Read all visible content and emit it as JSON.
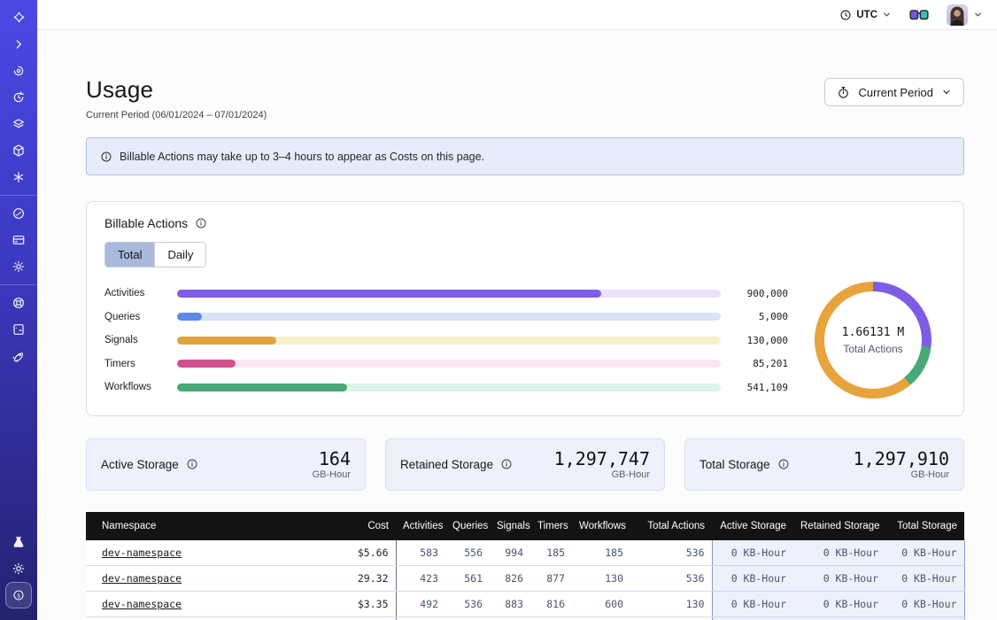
{
  "topbar": {
    "timezone": "UTC",
    "icons": [
      "clock-icon",
      "chevron-down-icon",
      "glasses-feedback-icon",
      "user-avatar",
      "chevron-down-icon"
    ]
  },
  "sidebar": {
    "icons_top": [
      "pinwheel-logo",
      "chevron-right",
      "spiral-namespaces",
      "clock-arrow-schedules",
      "layers",
      "cube-deployments",
      "asterisk-nexus"
    ],
    "icons_middle": [
      "gauge-usage",
      "credit-card-billing",
      "gear-settings"
    ],
    "icons_lower": [
      "life-buoy-support",
      "terminal-docs",
      "rocket-getting-started"
    ],
    "icons_bottom": [
      "flask-labs",
      "sun-theme",
      "dollar-coin-usage"
    ]
  },
  "page": {
    "title": "Usage",
    "subtitle": "Current Period (06/01/2024 – 07/01/2024)"
  },
  "period_button": {
    "label": "Current Period"
  },
  "banner": {
    "text": "Billable Actions may take up to 3–4 hours to appear as Costs on this page."
  },
  "billable": {
    "title": "Billable Actions",
    "tabs": [
      "Total",
      "Daily"
    ],
    "active_tab": "Total",
    "chart_data": {
      "type": "bar",
      "orientation": "horizontal",
      "categories": [
        "Activities",
        "Queries",
        "Signals",
        "Timers",
        "Workflows"
      ],
      "values": [
        900000,
        5000,
        130000,
        85201,
        541109
      ],
      "value_labels": [
        "900,000",
        "5,000",
        "130,000",
        "85,201",
        "541,109"
      ],
      "fill_pct": [
        78,
        4.5,
        18.3,
        10.8,
        31.3
      ],
      "colors": [
        "#7E5CE5",
        "#5C8AE6",
        "#E3A23D",
        "#D1508F",
        "#47A878"
      ],
      "track_colors": [
        "#E9E2FA",
        "#D8E3F8",
        "#F9EFCD",
        "#FAE6F2",
        "#DBF5E7"
      ],
      "title": "Billable Actions"
    },
    "donut": {
      "type": "pie",
      "total_label": "1.66131 M",
      "sublabel": "Total Actions",
      "segments": [
        {
          "name": "purple",
          "color": "#7E5CE5",
          "deg": 97
        },
        {
          "name": "green",
          "color": "#47A878",
          "deg": 43
        },
        {
          "name": "orange",
          "color": "#E8A33D",
          "deg": 220
        }
      ]
    }
  },
  "storage_cards": [
    {
      "label": "Active Storage",
      "value": "164",
      "unit": "GB-Hour"
    },
    {
      "label": "Retained Storage",
      "value": "1,297,747",
      "unit": "GB-Hour"
    },
    {
      "label": "Total Storage",
      "value": "1,297,910",
      "unit": "GB-Hour"
    }
  ],
  "table": {
    "columns": [
      "Namespace",
      "Cost",
      "Activities",
      "Queries",
      "Signals",
      "Timers",
      "Workflows",
      "Total Actions",
      "Active Storage",
      "Retained Storage",
      "Total Storage"
    ],
    "rows": [
      [
        "dev-namespace",
        "$5.66",
        "583",
        "556",
        "994",
        "185",
        "185",
        "536",
        "0 KB-Hour",
        "0 KB-Hour",
        "0 KB-Hour"
      ],
      [
        "dev-namespace",
        "29.32",
        "423",
        "561",
        "826",
        "877",
        "130",
        "536",
        "0 KB-Hour",
        "0 KB-Hour",
        "0 KB-Hour"
      ],
      [
        "dev-namespace",
        "$3.35",
        "492",
        "536",
        "883",
        "816",
        "600",
        "130",
        "0 KB-Hour",
        "0 KB-Hour",
        "0 KB-Hour"
      ]
    ]
  }
}
